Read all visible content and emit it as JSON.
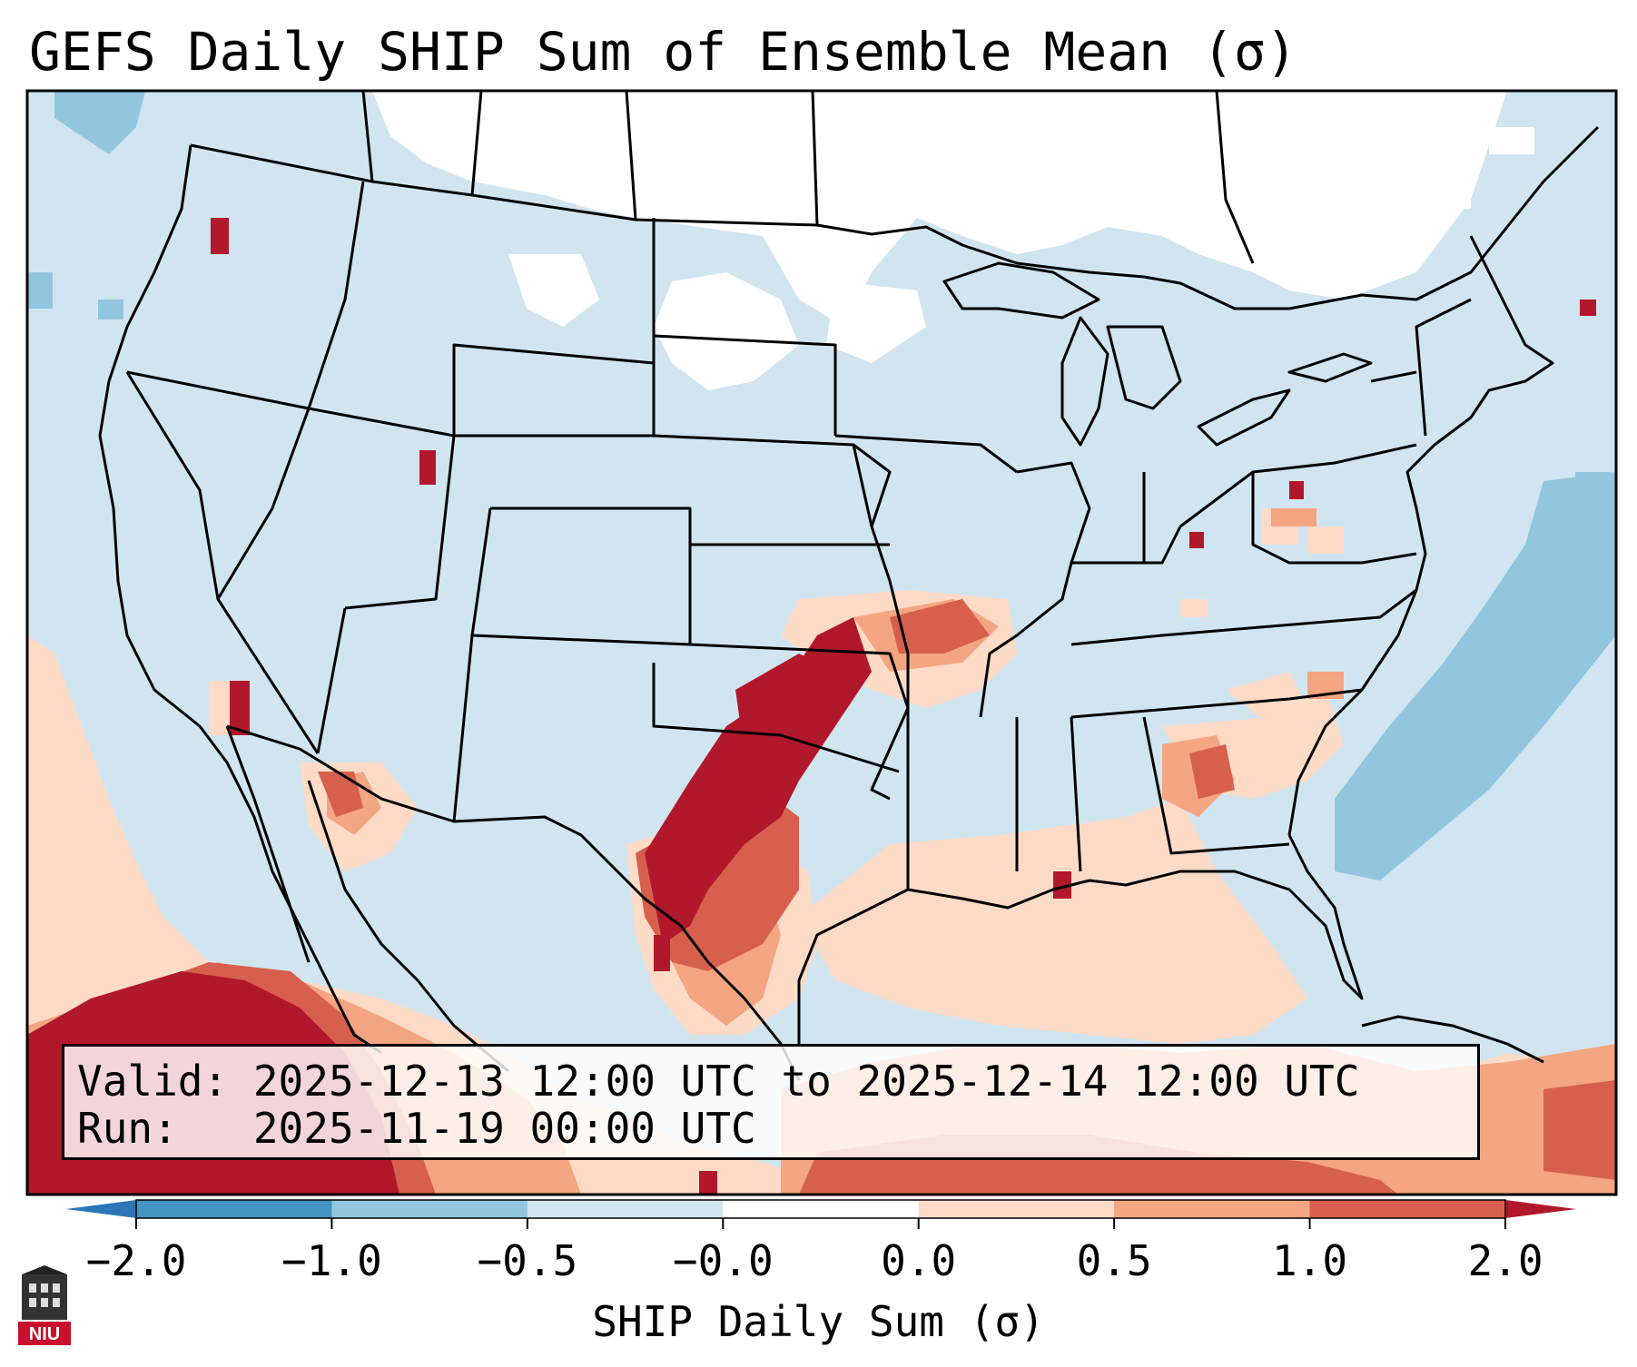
{
  "title": "GEFS Daily SHIP Sum of Ensemble Mean (σ)",
  "info": {
    "valid": "Valid: 2025-12-13 12:00 UTC to 2025-12-14 12:00 UTC",
    "run": "Run:   2025-11-19 00:00 UTC"
  },
  "colorbar": {
    "label": "SHIP Daily Sum (σ)",
    "ticks": [
      "−2.0",
      "−1.0",
      "−0.5",
      "−0.0",
      "0.0",
      "0.5",
      "1.0",
      "2.0"
    ],
    "colors": [
      "#2c76b7",
      "#4393c3",
      "#92c5de",
      "#d1e5f0",
      "#fddbc7",
      "#f4a582",
      "#d6604d",
      "#b2182b"
    ],
    "neutral_color": "#ffffff"
  },
  "logo": {
    "text": "NIU"
  },
  "palette": {
    "map_frame": "#000000",
    "boundary": "#000000",
    "background": "#ffffff"
  }
}
